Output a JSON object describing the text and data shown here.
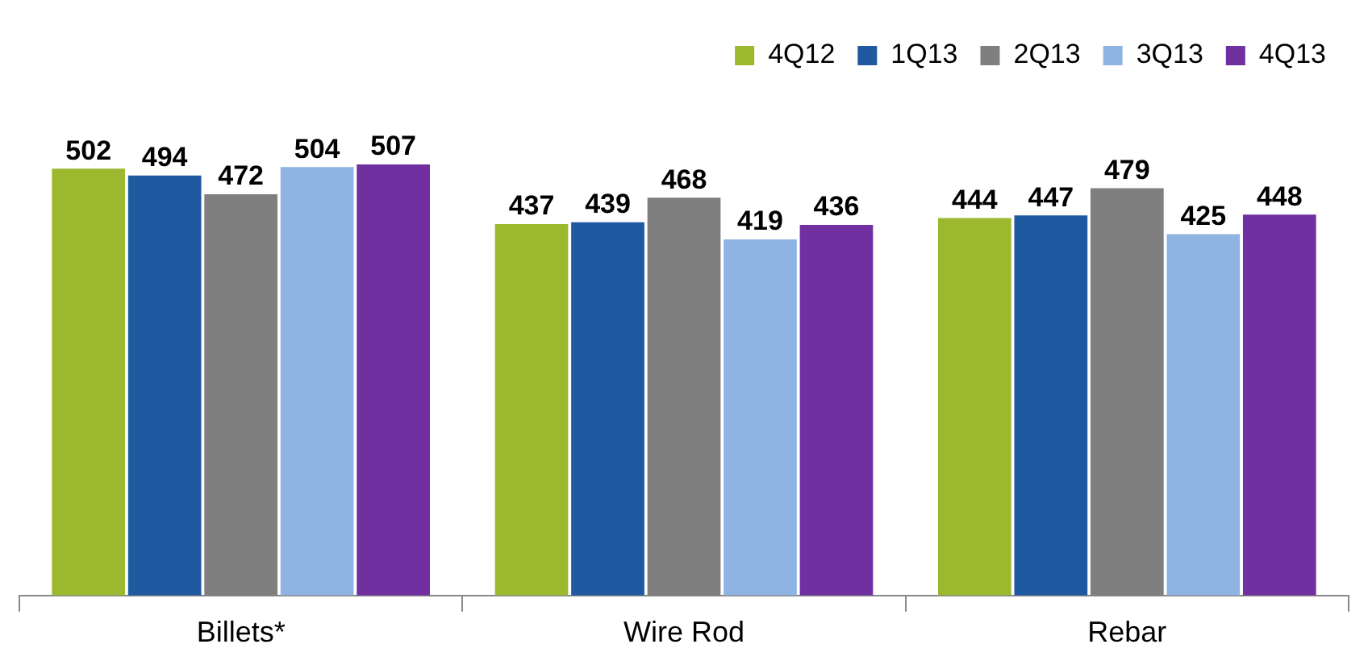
{
  "chart_data": {
    "type": "bar",
    "categories": [
      "Billets*",
      "Wire Rod",
      "Rebar"
    ],
    "series": [
      {
        "name": "4Q12",
        "color": "#9bb82f",
        "values": [
          502,
          437,
          444
        ]
      },
      {
        "name": "1Q13",
        "color": "#1f5aa0",
        "values": [
          494,
          439,
          447
        ]
      },
      {
        "name": "2Q13",
        "color": "#7f7f7f",
        "values": [
          472,
          468,
          479
        ]
      },
      {
        "name": "3Q13",
        "color": "#8fb4e3",
        "values": [
          504,
          419,
          425
        ]
      },
      {
        "name": "4Q13",
        "color": "#7030a0",
        "values": [
          507,
          436,
          448
        ]
      }
    ],
    "data_labels": true,
    "legend": "top right",
    "grid": false
  }
}
